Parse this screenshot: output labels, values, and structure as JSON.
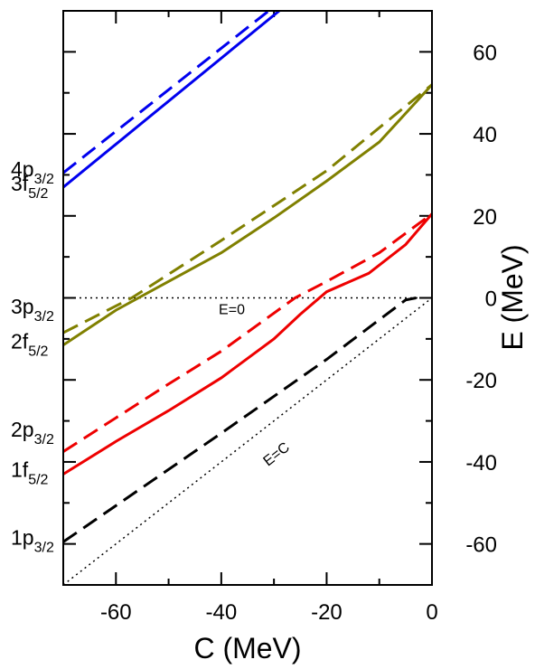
{
  "chart_data": {
    "type": "line",
    "xlabel": "C (MeV)",
    "ylabel": "E (MeV)",
    "xlim": [
      -70,
      0
    ],
    "ylim": [
      -70,
      70
    ],
    "xticks": [
      -60,
      -40,
      -20,
      0
    ],
    "xminorticks": [
      -70,
      -50,
      -30,
      -10
    ],
    "yticks": [
      60,
      40,
      20,
      0,
      -20,
      -40,
      -60
    ],
    "yminorticks": [
      50,
      30,
      10,
      -10,
      -30,
      -50
    ],
    "series": [
      {
        "name": "3f5/2",
        "color": "#0000ee",
        "dash": false,
        "x": [
          -70,
          -29
        ],
        "values": [
          27,
          70
        ]
      },
      {
        "name": "4p3/2",
        "color": "#0000ee",
        "dash": true,
        "x": [
          -70,
          -31
        ],
        "values": [
          30.5,
          70
        ]
      },
      {
        "name": "2f5/2",
        "color": "#808000",
        "dash": false,
        "x": [
          -70,
          -60,
          -50,
          -40,
          -30,
          -20,
          -10,
          0
        ],
        "values": [
          -11.5,
          -3,
          4,
          11,
          19.5,
          28.5,
          38,
          52
        ]
      },
      {
        "name": "3p3/2",
        "color": "#808000",
        "dash": true,
        "x": [
          -70,
          -57,
          -40,
          -20,
          0
        ],
        "values": [
          -8.5,
          0,
          14,
          31,
          52
        ]
      },
      {
        "name": "1f5/2",
        "color": "#ee0000",
        "dash": false,
        "x": [
          -70,
          -60,
          -50,
          -40,
          -30,
          -25,
          -20,
          -12,
          -5,
          0
        ],
        "values": [
          -43,
          -35,
          -27.5,
          -19.5,
          -10,
          -4,
          1.5,
          6,
          13,
          20.5
        ]
      },
      {
        "name": "2p3/2",
        "color": "#ee0000",
        "dash": true,
        "x": [
          -70,
          -50,
          -40,
          -26,
          -20,
          -10,
          0
        ],
        "values": [
          -37.5,
          -21,
          -13,
          0,
          4,
          11,
          20.5
        ]
      },
      {
        "name": "1p3/2",
        "color": "#000000",
        "dash": true,
        "x": [
          -70,
          -40,
          -20,
          -5,
          -3
        ],
        "values": [
          -59.5,
          -33,
          -15,
          -0.5,
          0
        ]
      }
    ],
    "reference_lines": [
      {
        "label": "E=0",
        "x": [
          -70,
          0
        ],
        "values": [
          0,
          0
        ],
        "label_x": -38,
        "label_y": -4
      },
      {
        "label": "E=C",
        "x": [
          -70,
          0
        ],
        "values": [
          -70,
          0
        ],
        "label_x": -29,
        "label_y": -39
      }
    ],
    "level_labels": [
      {
        "text": "4p",
        "sub": "3/2",
        "value": 30.5
      },
      {
        "text": "3f",
        "sub": "5/2",
        "value": 27
      },
      {
        "text": "3p",
        "sub": "3/2",
        "value": -3
      },
      {
        "text": "2f",
        "sub": "5/2",
        "value": -11.5
      },
      {
        "text": "2p",
        "sub": "3/2",
        "value": -33
      },
      {
        "text": "1f",
        "sub": "5/2",
        "value": -42.8
      },
      {
        "text": "1p",
        "sub": "3/2",
        "value": -59.3
      }
    ]
  }
}
